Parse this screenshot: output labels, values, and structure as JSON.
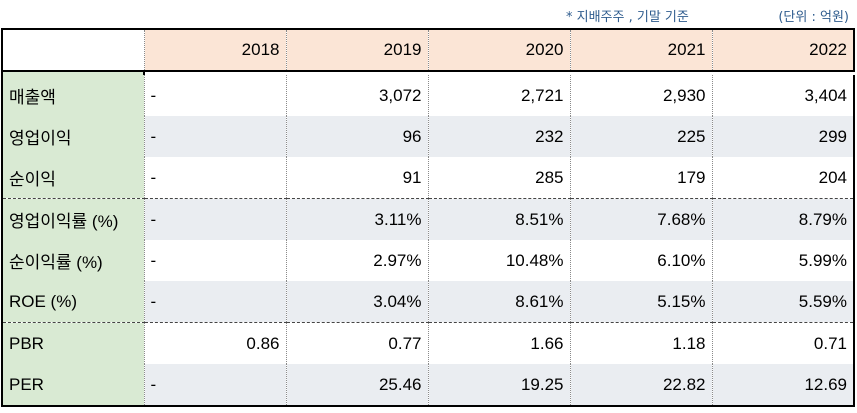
{
  "notes": {
    "basis": "* 지배주주 , 기말 기준",
    "unit": "(단위 : 억원)"
  },
  "years": [
    "2018",
    "2019",
    "2020",
    "2021",
    "2022"
  ],
  "rows": [
    {
      "label": "매출액",
      "values": [
        "-",
        "3,072",
        "2,721",
        "2,930",
        "3,404"
      ]
    },
    {
      "label": "영업이익",
      "values": [
        "-",
        "96",
        "232",
        "225",
        "299"
      ]
    },
    {
      "label": "순이익",
      "values": [
        "-",
        "91",
        "285",
        "179",
        "204"
      ]
    },
    {
      "label": "영업이익률 (%)",
      "values": [
        "-",
        "3.11%",
        "8.51%",
        "7.68%",
        "8.79%"
      ]
    },
    {
      "label": "순이익률 (%)",
      "values": [
        "-",
        "2.97%",
        "10.48%",
        "6.10%",
        "5.99%"
      ]
    },
    {
      "label": "ROE (%)",
      "values": [
        "-",
        "3.04%",
        "8.61%",
        "5.15%",
        "5.59%"
      ]
    },
    {
      "label": "PBR",
      "values": [
        "0.86",
        "0.77",
        "1.66",
        "1.18",
        "0.71"
      ]
    },
    {
      "label": "PER",
      "values": [
        "-",
        "25.46",
        "19.25",
        "22.82",
        "12.69"
      ]
    }
  ],
  "colors": {
    "header_bg": "#fbe5d6",
    "label_bg": "#d9ead3",
    "stripe_bg": "#eaedf1",
    "note_text": "#2f5c8e"
  }
}
